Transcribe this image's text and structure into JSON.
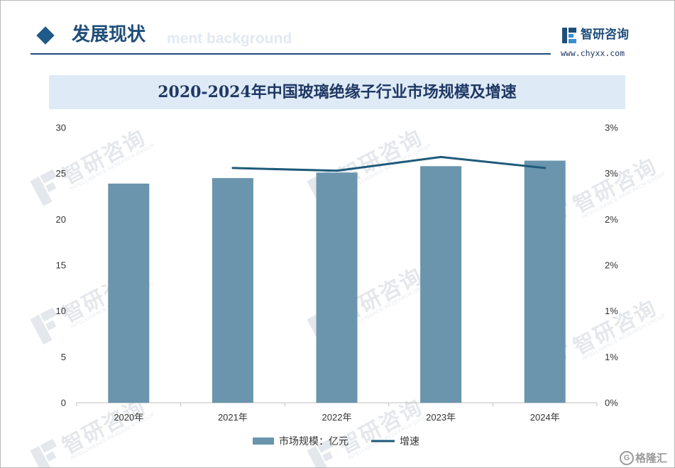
{
  "header": {
    "title": "发展现状",
    "ghost_text": "ment background"
  },
  "brand": {
    "name": "智研咨询",
    "url": "www.chyxx.com"
  },
  "watermark": {
    "name": "智研咨询",
    "tagline": "INTELLIGENCE RESEARCH GROUP"
  },
  "corner_logo": {
    "mark": "G",
    "name": "格隆汇"
  },
  "colors": {
    "accent": "#1f4e79",
    "banner_bg": "#deeaf6",
    "bar": "#6a95ad",
    "line": "#1f5a7a",
    "axis": "#bfbfbf"
  },
  "icons": {
    "header": "diamond-icon",
    "brand": "chyxx-logo-icon",
    "corner": "gelonghui-logo-icon"
  },
  "chart_data": {
    "type": "bar",
    "title": "2020-2024年中国玻璃绝缘子行业市场规模及增速",
    "categories": [
      "2020年",
      "2021年",
      "2022年",
      "2023年",
      "2024年"
    ],
    "series": [
      {
        "name": "市场规模：亿元",
        "type": "bar",
        "axis": "left",
        "values": [
          23.9,
          24.5,
          25.1,
          25.8,
          26.4
        ]
      },
      {
        "name": "增速",
        "type": "line",
        "axis": "right",
        "unit": "%",
        "values": [
          null,
          2.56,
          2.53,
          2.68,
          2.56
        ]
      }
    ],
    "y_left": {
      "range": [
        0,
        30
      ],
      "tick_labels": [
        "0",
        "5",
        "10",
        "15",
        "20",
        "25",
        "30"
      ]
    },
    "y_right": {
      "range": [
        0,
        3
      ],
      "tick_labels": [
        "0%",
        "1%",
        "1%",
        "2%",
        "2%",
        "3%",
        "3%"
      ]
    },
    "grid": false,
    "legend": "bottom"
  }
}
